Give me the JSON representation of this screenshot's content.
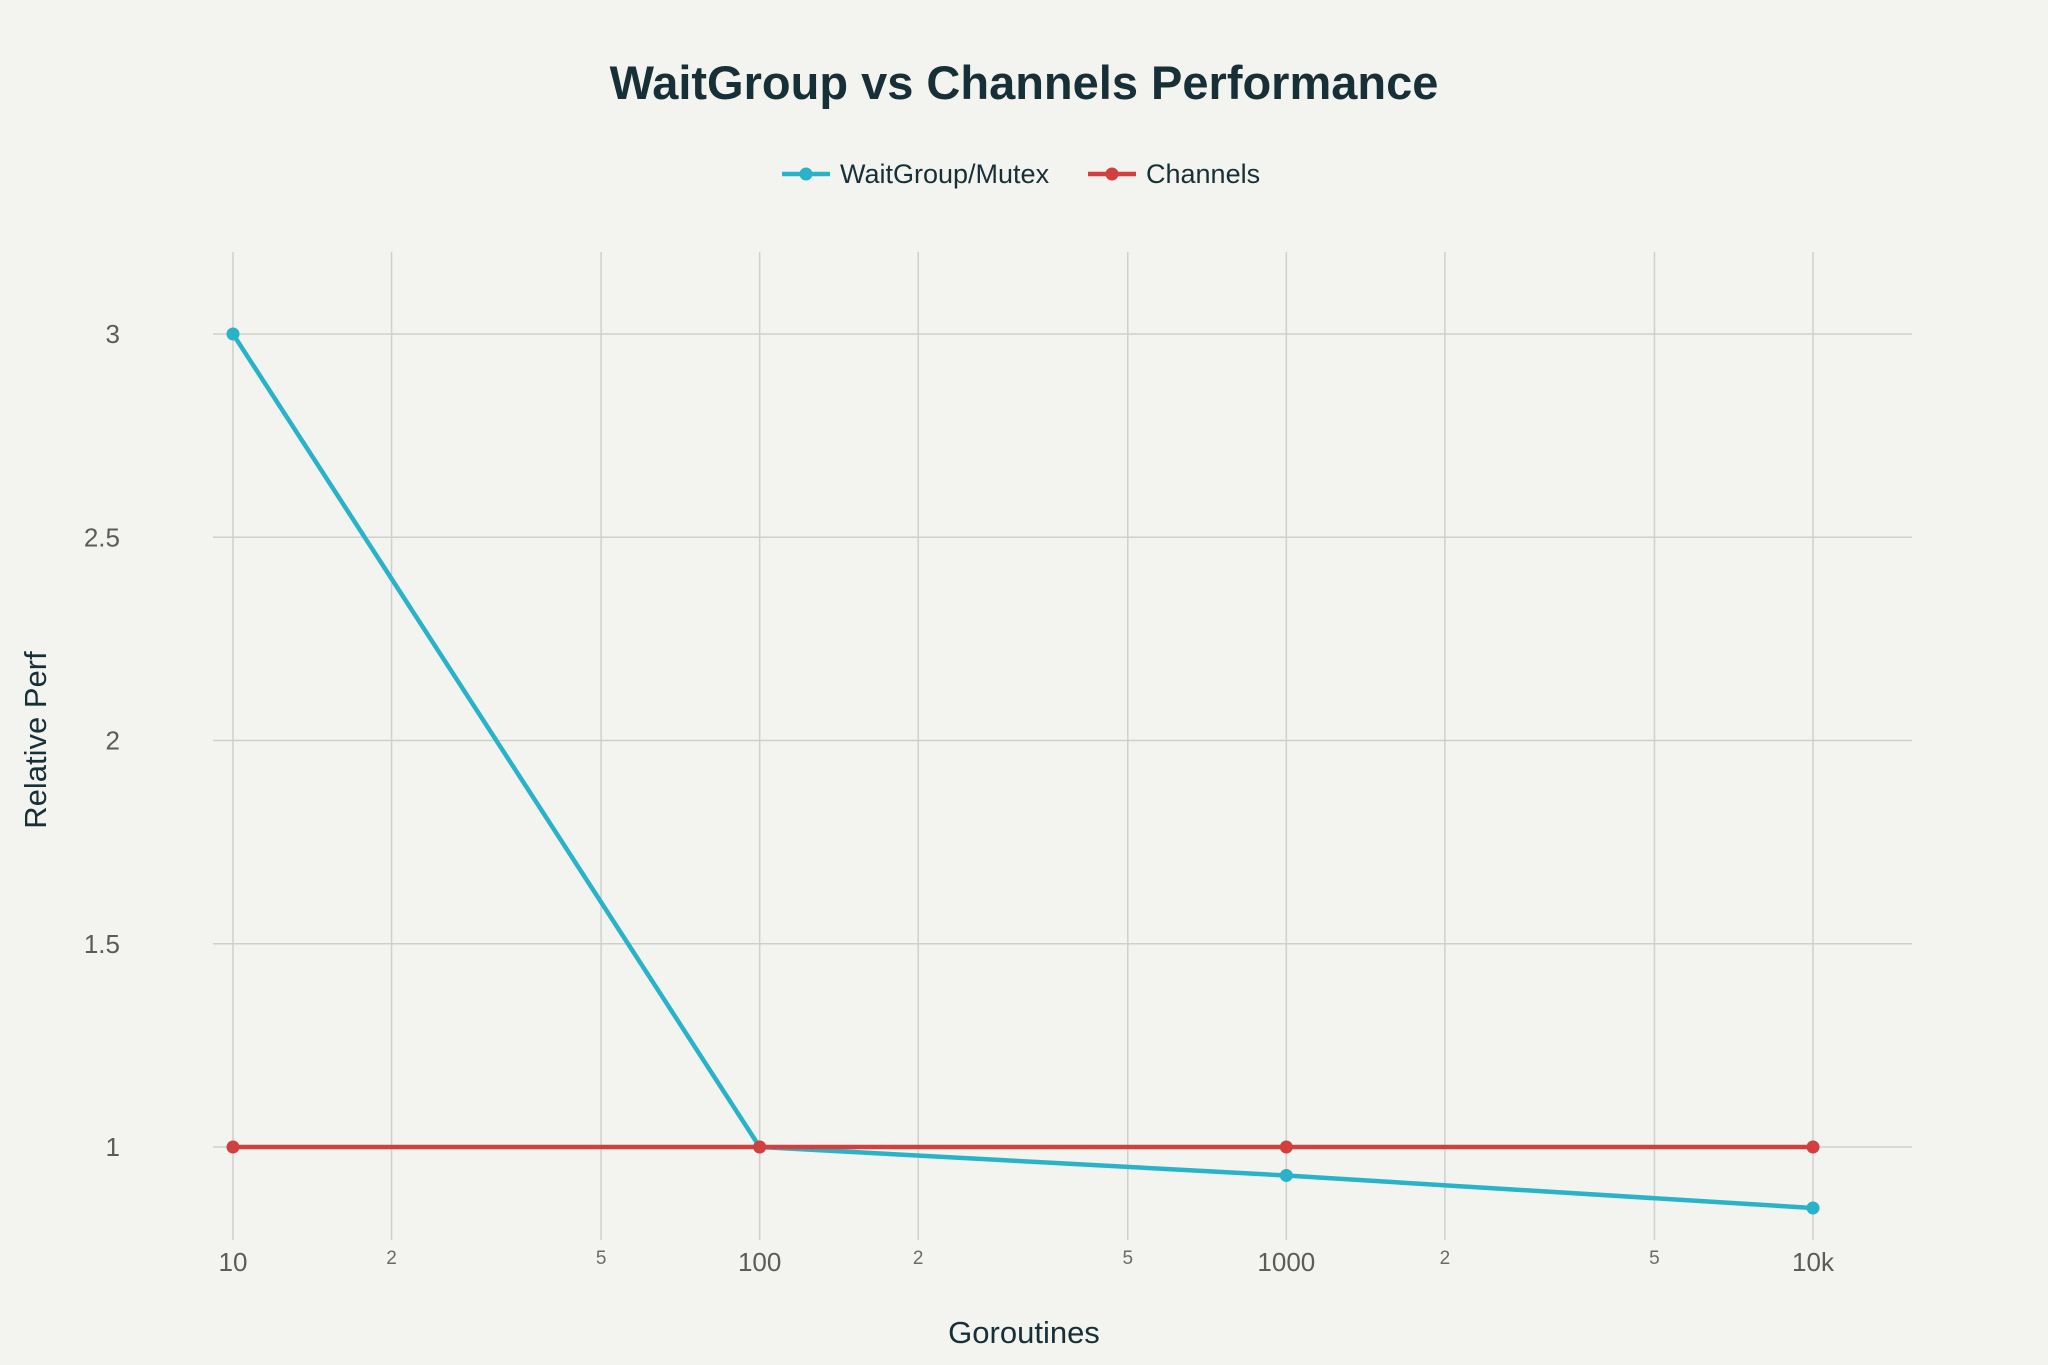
{
  "chart_data": {
    "type": "line",
    "title": "WaitGroup vs Channels Performance",
    "xlabel": "Goroutines",
    "ylabel": "Relative Perf",
    "x_scale": "log",
    "x": [
      10,
      100,
      1000,
      10000
    ],
    "x_range": [
      10,
      10000
    ],
    "y_range": [
      0.85,
      3.2
    ],
    "x_major_ticks": [
      {
        "value": 10,
        "label": "10"
      },
      {
        "value": 100,
        "label": "100"
      },
      {
        "value": 1000,
        "label": "1000"
      },
      {
        "value": 10000,
        "label": "10k"
      }
    ],
    "x_minor_ticks": [
      {
        "value": 20,
        "label": "2"
      },
      {
        "value": 50,
        "label": "5"
      },
      {
        "value": 200,
        "label": "2"
      },
      {
        "value": 500,
        "label": "5"
      },
      {
        "value": 2000,
        "label": "2"
      },
      {
        "value": 5000,
        "label": "5"
      }
    ],
    "y_ticks": [
      {
        "value": 1,
        "label": "1"
      },
      {
        "value": 1.5,
        "label": "1.5"
      },
      {
        "value": 2,
        "label": "2"
      },
      {
        "value": 2.5,
        "label": "2.5"
      },
      {
        "value": 3,
        "label": "3"
      }
    ],
    "grid": true,
    "legend_position": "top-center",
    "series": [
      {
        "name": "WaitGroup/Mutex",
        "color": "#29b3c9",
        "values": [
          3.0,
          1.0,
          0.93,
          0.85
        ]
      },
      {
        "name": "Channels",
        "color": "#d1403f",
        "values": [
          1.0,
          1.0,
          1.0,
          1.0
        ]
      }
    ]
  }
}
